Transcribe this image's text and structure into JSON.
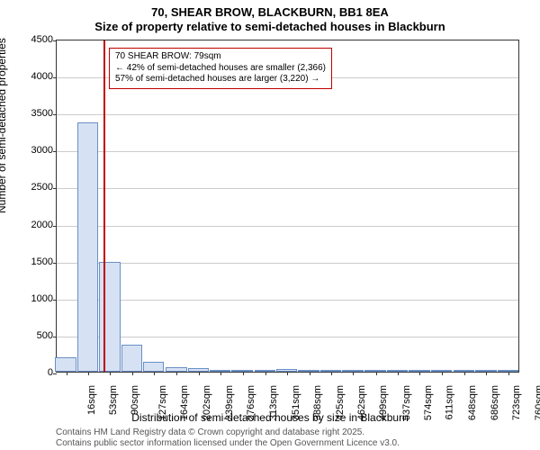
{
  "title_line1": "70, SHEAR BROW, BLACKBURN, BB1 8EA",
  "title_line2": "Size of property relative to semi-detached houses in Blackburn",
  "ylabel": "Number of semi-detached properties",
  "xlabel": "Distribution of semi-detached houses by size in Blackburn",
  "footer1": "Contains HM Land Registry data © Crown copyright and database right 2025.",
  "footer2": "Contains public sector information licensed under the Open Government Licence v3.0.",
  "chart": {
    "type": "bar",
    "ylim": [
      0,
      4500
    ],
    "ytick_step": 500,
    "yticks": [
      0,
      500,
      1000,
      1500,
      2000,
      2500,
      3000,
      3500,
      4000,
      4500
    ],
    "xtick_labels": [
      "16sqm",
      "53sqm",
      "90sqm",
      "127sqm",
      "164sqm",
      "202sqm",
      "239sqm",
      "276sqm",
      "313sqm",
      "351sqm",
      "388sqm",
      "425sqm",
      "462sqm",
      "499sqm",
      "537sqm",
      "574sqm",
      "611sqm",
      "648sqm",
      "686sqm",
      "723sqm",
      "760sqm"
    ],
    "bar_color": "#d6e2f3",
    "bar_border": "#6a8fc6",
    "grid_color": "#cccccc",
    "background_color": "#ffffff",
    "marker_color": "#c00000",
    "marker_x_value": 79,
    "x_min": 0,
    "x_max": 780,
    "bars": [
      {
        "x": 16,
        "value": 200
      },
      {
        "x": 53,
        "value": 3370
      },
      {
        "x": 90,
        "value": 1480
      },
      {
        "x": 127,
        "value": 370
      },
      {
        "x": 164,
        "value": 130
      },
      {
        "x": 202,
        "value": 60
      },
      {
        "x": 239,
        "value": 50
      },
      {
        "x": 276,
        "value": 30
      },
      {
        "x": 313,
        "value": 20
      },
      {
        "x": 351,
        "value": 15
      },
      {
        "x": 388,
        "value": 40
      },
      {
        "x": 425,
        "value": 10
      },
      {
        "x": 462,
        "value": 5
      },
      {
        "x": 499,
        "value": 5
      },
      {
        "x": 537,
        "value": 5
      },
      {
        "x": 574,
        "value": 5
      },
      {
        "x": 611,
        "value": 5
      },
      {
        "x": 648,
        "value": 5
      },
      {
        "x": 686,
        "value": 5
      },
      {
        "x": 723,
        "value": 5
      },
      {
        "x": 760,
        "value": 5
      }
    ],
    "bar_width_data": 37,
    "annotation": {
      "line1": "70 SHEAR BROW: 79sqm",
      "line2": "← 42% of semi-detached houses are smaller (2,366)",
      "line3": "57% of semi-detached houses are larger (3,220) →"
    },
    "title_fontsize": 13,
    "label_fontsize": 12,
    "tick_fontsize": 11,
    "annotation_fontsize": 10,
    "footer_fontsize": 10
  }
}
